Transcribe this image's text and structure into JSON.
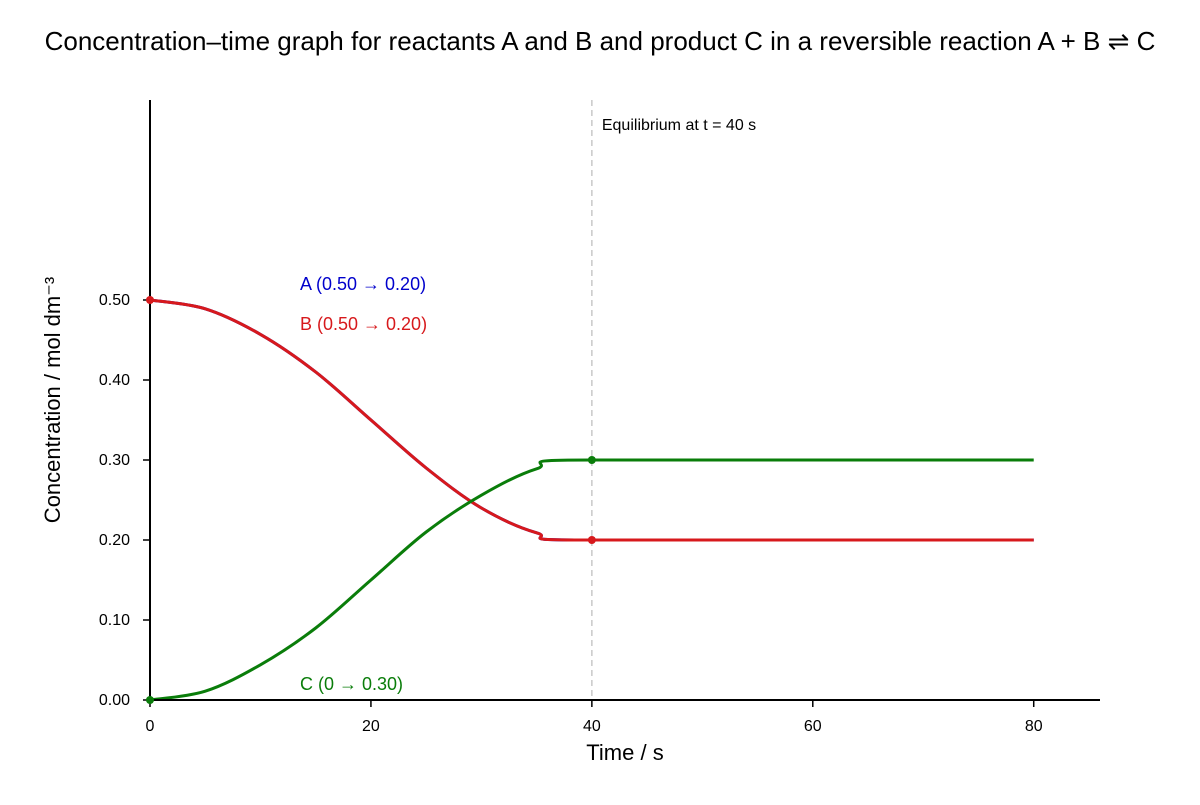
{
  "chart_data": {
    "type": "line",
    "title": "Concentration–time graph for reactants A and B and product C in a reversible reaction A + B ⇌ C",
    "xlabel": "Time / s",
    "ylabel": "Concentration / mol dm⁻³",
    "xlim": [
      0,
      86
    ],
    "ylim": [
      0,
      0.75
    ],
    "x_ticks": [
      0,
      20,
      40,
      60,
      80
    ],
    "x_tick_labels": [
      "0",
      "20",
      "40",
      "60",
      "80"
    ],
    "y_ticks": [
      0,
      0.1,
      0.2,
      0.3,
      0.4,
      0.5
    ],
    "y_tick_labels": [
      "0.00",
      "0.10",
      "0.20",
      "0.30",
      "0.40",
      "0.50"
    ],
    "grid": false,
    "series": [
      {
        "name": "A (0.50 → 0.20)",
        "color": "#0000cc",
        "x": [
          0,
          5,
          10,
          15,
          20,
          25,
          30,
          35,
          40,
          80
        ],
        "y": [
          0.5,
          0.489,
          0.457,
          0.41,
          0.35,
          0.29,
          0.24,
          0.209,
          0.2,
          0.2
        ]
      },
      {
        "name": "B (0.50 → 0.20)",
        "color": "#d7191c",
        "x": [
          0,
          5,
          10,
          15,
          20,
          25,
          30,
          35,
          40,
          80
        ],
        "y": [
          0.5,
          0.489,
          0.457,
          0.41,
          0.35,
          0.29,
          0.24,
          0.209,
          0.2,
          0.2
        ]
      },
      {
        "name": "C (0 → 0.30)",
        "color": "#0a7d0a",
        "x": [
          0,
          5,
          10,
          15,
          20,
          25,
          30,
          35,
          40,
          80
        ],
        "y": [
          0,
          0.011,
          0.044,
          0.09,
          0.15,
          0.21,
          0.256,
          0.289,
          0.3,
          0.3
        ]
      }
    ],
    "markers": [
      {
        "x": 0,
        "y": 0.5,
        "color": "#d7191c"
      },
      {
        "x": 0,
        "y": 0,
        "color": "#0a7d0a"
      },
      {
        "x": 40,
        "y": 0.3,
        "color": "#0a7d0a"
      },
      {
        "x": 40,
        "y": 0.2,
        "color": "#d7191c"
      }
    ],
    "annotations": [
      {
        "text": "Equilibrium at t = 40 s",
        "x": 40,
        "line_style": "dashed",
        "line_color": "#c8c8c8"
      }
    ]
  }
}
